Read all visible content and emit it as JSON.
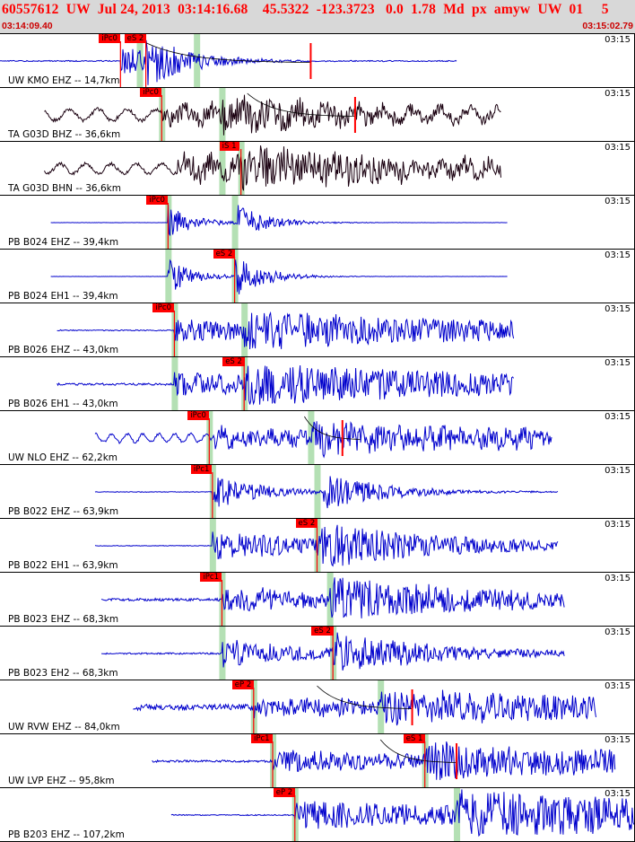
{
  "header": {
    "title": "60557612  UW  Jul 24, 2013  03:14:16.68    45.5322  -123.3723   0.0  1.78  Md  px  amyw  UW  01     5",
    "start_time": "03:14:09.40",
    "end_time": "03:15:02.79"
  },
  "colors": {
    "trace_blue": "#0000cc",
    "trace_black": "#1a0010",
    "pick_red": "#ff0000",
    "window_green": "#b4e0b4"
  },
  "traces": [
    {
      "label": "UW KMO EHZ -- 14,7km",
      "time": "03:15",
      "color": "blue",
      "noise": 0.1,
      "sig": 0.9,
      "start": 0.0,
      "end": 0.72,
      "ponset": 0.19,
      "sonset": 0.23,
      "decay": 0.06,
      "picks": [
        {
          "text": "iPc0",
          "at": 0.19
        },
        {
          "text": "eS 2",
          "at": 0.23
        }
      ],
      "coda": {
        "from": 0.22,
        "to": 0.49
      },
      "marks": [
        0.49
      ],
      "win": [
        0.22,
        0.31
      ]
    },
    {
      "label": "TA G03D BHZ -- 36,6km",
      "time": "03:15",
      "color": "black",
      "noise": 0.35,
      "sig": 0.55,
      "start": 0.07,
      "end": 0.79,
      "ponset": 0.255,
      "sonset": 0.35,
      "decay": 0.25,
      "period": 0.045,
      "picks": [
        {
          "text": "iPc0",
          "at": 0.255
        }
      ],
      "coda": {
        "from": 0.39,
        "to": 0.56
      },
      "marks": [
        0.56
      ],
      "win": [
        0.255,
        0.35
      ]
    },
    {
      "label": "TA G03D BHN -- 36,6km",
      "time": "03:15",
      "color": "black",
      "noise": 0.3,
      "sig": 0.7,
      "start": 0.07,
      "end": 0.79,
      "ponset": 0.28,
      "sonset": 0.38,
      "decay": 0.3,
      "period": 0.04,
      "picks": [
        {
          "text": "iS 1",
          "at": 0.38
        }
      ],
      "coda": null,
      "marks": [],
      "win": [
        0.35,
        0.38
      ]
    },
    {
      "label": "PB B024 EHZ -- 39,4km",
      "time": "03:15",
      "color": "blue",
      "noise": 0.02,
      "sig": 0.9,
      "start": 0.08,
      "end": 0.8,
      "ponset": 0.265,
      "sonset": 0.37,
      "decay": 0.04,
      "picks": [
        {
          "text": "iPc0",
          "at": 0.265
        }
      ],
      "coda": null,
      "marks": [],
      "win": [
        0.265,
        0.37
      ]
    },
    {
      "label": "PB B024 EH1 -- 39,4km",
      "time": "03:15",
      "color": "blue",
      "noise": 0.02,
      "sig": 0.9,
      "start": 0.08,
      "end": 0.8,
      "ponset": 0.265,
      "sonset": 0.37,
      "decay": 0.04,
      "picks": [
        {
          "text": "eS 2",
          "at": 0.37
        }
      ],
      "coda": null,
      "marks": [],
      "win": [
        0.265,
        0.37
      ]
    },
    {
      "label": "PB B026 EHZ -- 43,0km",
      "time": "03:15",
      "color": "blue",
      "noise": 0.1,
      "sig": 0.55,
      "start": 0.09,
      "end": 0.81,
      "ponset": 0.275,
      "sonset": 0.385,
      "decay": 0.5,
      "picks": [
        {
          "text": "iPc0",
          "at": 0.275
        }
      ],
      "coda": null,
      "marks": [],
      "win": [
        0.275,
        0.385
      ]
    },
    {
      "label": "PB B026 EH1 -- 43,0km",
      "time": "03:15",
      "color": "blue",
      "noise": 0.2,
      "sig": 0.6,
      "start": 0.09,
      "end": 0.81,
      "ponset": 0.275,
      "sonset": 0.385,
      "decay": 0.5,
      "picks": [
        {
          "text": "eS 2",
          "at": 0.385
        }
      ],
      "coda": null,
      "marks": [],
      "win": [
        0.275,
        0.385
      ]
    },
    {
      "label": "UW NLO EHZ -- 62,2km",
      "time": "03:15",
      "color": "blue",
      "noise": 0.25,
      "sig": 0.45,
      "start": 0.15,
      "end": 0.87,
      "ponset": 0.33,
      "sonset": 0.49,
      "decay": 0.5,
      "period": 0.025,
      "picks": [
        {
          "text": "iPc0",
          "at": 0.33
        }
      ],
      "coda": {
        "from": 0.48,
        "to": 0.57
      },
      "marks": [
        0.54
      ],
      "win": [
        0.33,
        0.49
      ]
    },
    {
      "label": "PB B022 EHZ -- 63,9km",
      "time": "03:15",
      "color": "blue",
      "noise": 0.06,
      "sig": 0.9,
      "start": 0.15,
      "end": 0.88,
      "ponset": 0.335,
      "sonset": 0.51,
      "decay": 0.08,
      "picks": [
        {
          "text": "iPc1",
          "at": 0.335
        }
      ],
      "coda": null,
      "marks": [],
      "win": [
        0.335,
        0.5
      ]
    },
    {
      "label": "PB B022 EH1 -- 63,9km",
      "time": "03:15",
      "color": "blue",
      "noise": 0.06,
      "sig": 0.8,
      "start": 0.15,
      "end": 0.88,
      "ponset": 0.335,
      "sonset": 0.5,
      "decay": 0.2,
      "picks": [
        {
          "text": "eS 2",
          "at": 0.5
        }
      ],
      "coda": null,
      "marks": [],
      "win": [
        0.335,
        0.5
      ]
    },
    {
      "label": "PB B023 EHZ -- 68,3km",
      "time": "03:15",
      "color": "blue",
      "noise": 0.25,
      "sig": 0.7,
      "start": 0.16,
      "end": 0.89,
      "ponset": 0.35,
      "sonset": 0.52,
      "decay": 0.3,
      "picks": [
        {
          "text": "iPc1",
          "at": 0.35
        }
      ],
      "coda": null,
      "marks": [],
      "win": [
        0.35,
        0.52
      ]
    },
    {
      "label": "PB B023 EH2 -- 68,3km",
      "time": "03:15",
      "color": "blue",
      "noise": 0.15,
      "sig": 0.8,
      "start": 0.16,
      "end": 0.89,
      "ponset": 0.35,
      "sonset": 0.525,
      "decay": 0.15,
      "picks": [
        {
          "text": "eS 2",
          "at": 0.525
        }
      ],
      "coda": null,
      "marks": [],
      "win": [
        0.35,
        0.525
      ]
    },
    {
      "label": "UW RVW EHZ -- 84,0km",
      "time": "03:15",
      "color": "blue",
      "noise": 0.55,
      "sig": 0.45,
      "start": 0.21,
      "end": 0.94,
      "ponset": 0.4,
      "sonset": 0.6,
      "decay": 0.8,
      "picks": [
        {
          "text": "eP 2",
          "at": 0.4
        }
      ],
      "coda": {
        "from": 0.5,
        "to": 0.65
      },
      "marks": [
        0.65
      ],
      "win": [
        0.4,
        0.6
      ]
    },
    {
      "label": "UW LVP EHZ -- 95,8km",
      "time": "03:15",
      "color": "blue",
      "noise": 0.2,
      "sig": 0.6,
      "start": 0.24,
      "end": 0.97,
      "ponset": 0.43,
      "sonset": 0.67,
      "decay": 0.5,
      "picks": [
        {
          "text": "iPc1",
          "at": 0.43
        },
        {
          "text": "eS 1",
          "at": 0.67
        }
      ],
      "coda": {
        "from": 0.6,
        "to": 0.72
      },
      "marks": [
        0.72
      ],
      "win": [
        0.43,
        0.67
      ]
    },
    {
      "label": "PB B203 EHZ -- 107,2km",
      "time": "03:15",
      "color": "blue",
      "noise": 0.1,
      "sig": 0.75,
      "start": 0.27,
      "end": 1.0,
      "ponset": 0.465,
      "sonset": 0.72,
      "decay": 0.6,
      "picks": [
        {
          "text": "eP 2",
          "at": 0.465
        }
      ],
      "coda": null,
      "marks": [],
      "win": [
        0.465,
        0.72
      ]
    }
  ]
}
